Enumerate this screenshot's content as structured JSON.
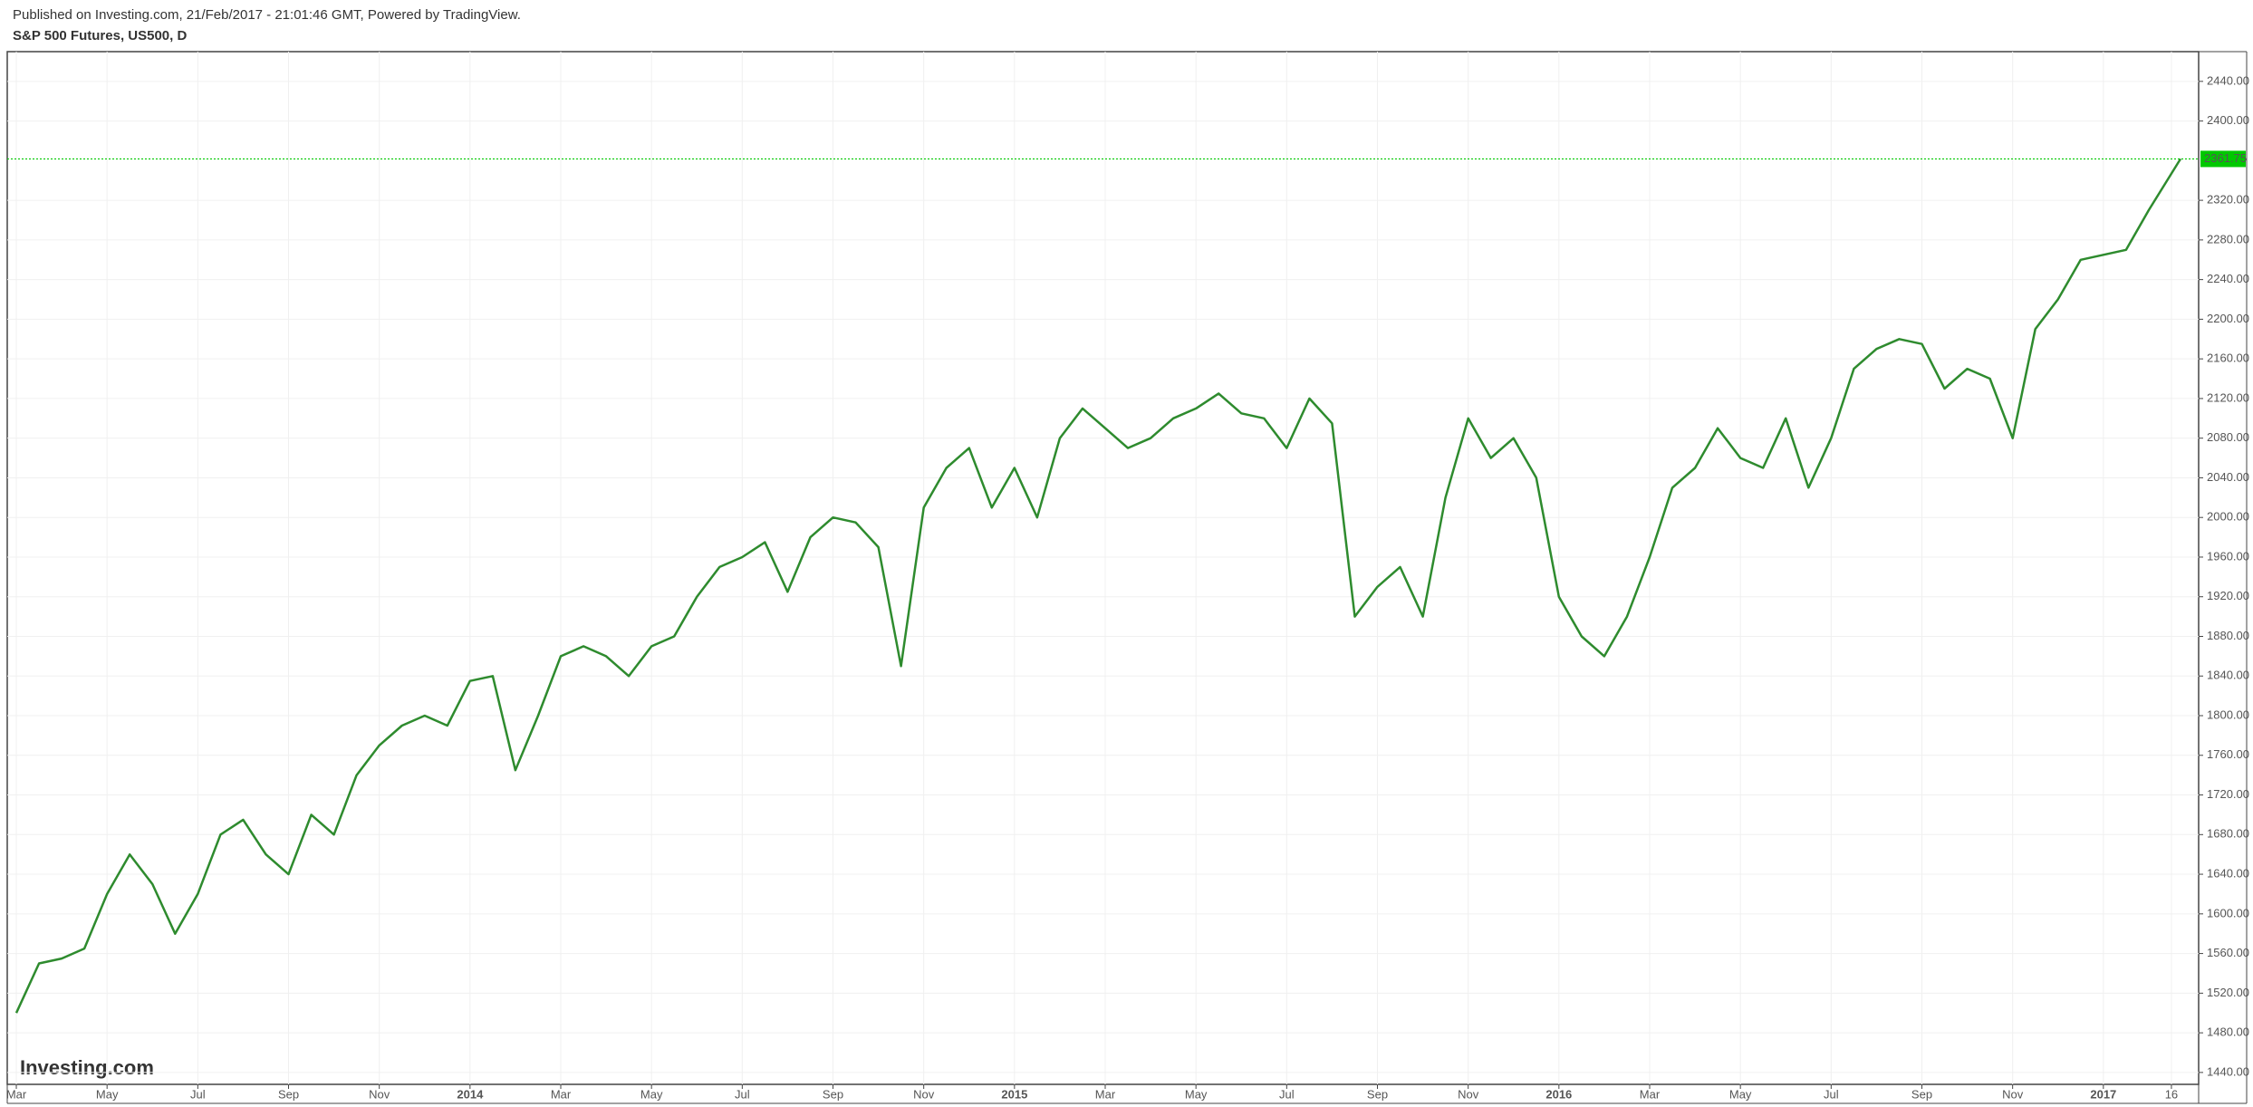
{
  "header": {
    "published": "Published on Investing.com, 21/Feb/2017 - 21:01:46 GMT, Powered by TradingView.",
    "logo": "Investing.com"
  },
  "chart_data": {
    "type": "line",
    "title": "S&P 500 Futures, US500, D",
    "color": "#2e8b2e",
    "x": [
      0,
      0.5,
      1,
      1.5,
      2,
      2.5,
      3,
      3.5,
      4,
      4.5,
      5,
      5.5,
      6,
      6.5,
      7,
      7.5,
      8,
      8.5,
      9,
      9.5,
      10,
      10.5,
      11,
      11.5,
      12,
      12.5,
      13,
      13.5,
      14,
      14.5,
      15,
      15.5,
      16,
      16.5,
      17,
      17.5,
      18,
      18.5,
      19,
      19.5,
      20,
      20.5,
      21,
      21.5,
      22,
      22.5,
      23,
      23.5,
      24,
      24.5,
      25,
      25.5,
      26,
      26.5,
      27,
      27.5,
      28,
      28.5,
      29,
      29.5,
      30,
      30.5,
      31,
      31.5,
      32,
      32.5,
      33,
      33.5,
      34,
      34.5,
      35,
      35.5,
      36,
      36.5,
      37,
      37.5,
      38,
      38.5,
      39,
      39.5,
      40,
      40.5,
      41,
      41.5,
      42,
      42.5,
      43,
      43.5,
      44,
      44.5,
      45,
      45.5,
      46,
      46.5,
      47,
      47.7
    ],
    "values": [
      1500,
      1550,
      1555,
      1565,
      1620,
      1660,
      1630,
      1580,
      1620,
      1680,
      1695,
      1660,
      1640,
      1700,
      1680,
      1740,
      1770,
      1790,
      1800,
      1790,
      1835,
      1840,
      1745,
      1800,
      1860,
      1870,
      1860,
      1840,
      1870,
      1880,
      1920,
      1950,
      1960,
      1975,
      1925,
      1980,
      2000,
      1995,
      1970,
      1850,
      2010,
      2050,
      2070,
      2010,
      2050,
      2000,
      2080,
      2110,
      2090,
      2070,
      2080,
      2100,
      2110,
      2125,
      2105,
      2100,
      2070,
      2120,
      2095,
      1900,
      1930,
      1950,
      1900,
      2020,
      2100,
      2060,
      2080,
      2040,
      1920,
      1880,
      1860,
      1900,
      1960,
      2030,
      2050,
      2090,
      2060,
      2050,
      2100,
      2030,
      2080,
      2150,
      2170,
      2180,
      2175,
      2130,
      2150,
      2140,
      2080,
      2190,
      2220,
      2260,
      2265,
      2270,
      2310,
      2361.75
    ],
    "last_price": {
      "value": 2361.75,
      "label": "2361.75",
      "color": "#00c800"
    },
    "xlim": [
      -0.2,
      48.1
    ],
    "xticks": [
      {
        "value": 0,
        "label": "Mar"
      },
      {
        "value": 2,
        "label": "May"
      },
      {
        "value": 4,
        "label": "Jul"
      },
      {
        "value": 6,
        "label": "Sep"
      },
      {
        "value": 8,
        "label": "Nov"
      },
      {
        "value": 10,
        "label": "2014"
      },
      {
        "value": 12,
        "label": "Mar"
      },
      {
        "value": 14,
        "label": "May"
      },
      {
        "value": 16,
        "label": "Jul"
      },
      {
        "value": 18,
        "label": "Sep"
      },
      {
        "value": 20,
        "label": "Nov"
      },
      {
        "value": 22,
        "label": "2015"
      },
      {
        "value": 24,
        "label": "Mar"
      },
      {
        "value": 26,
        "label": "May"
      },
      {
        "value": 28,
        "label": "Jul"
      },
      {
        "value": 30,
        "label": "Sep"
      },
      {
        "value": 32,
        "label": "Nov"
      },
      {
        "value": 34,
        "label": "2016"
      },
      {
        "value": 36,
        "label": "Mar"
      },
      {
        "value": 38,
        "label": "May"
      },
      {
        "value": 40,
        "label": "Jul"
      },
      {
        "value": 42,
        "label": "Sep"
      },
      {
        "value": 44,
        "label": "Nov"
      },
      {
        "value": 46,
        "label": "2017"
      },
      {
        "value": 47.5,
        "label": "16"
      }
    ],
    "ylim": [
      1428,
      2470
    ],
    "yticks": [
      {
        "value": 1440,
        "label": "1440.00"
      },
      {
        "value": 1480,
        "label": "1480.00"
      },
      {
        "value": 1520,
        "label": "1520.00"
      },
      {
        "value": 1560,
        "label": "1560.00"
      },
      {
        "value": 1600,
        "label": "1600.00"
      },
      {
        "value": 1640,
        "label": "1640.00"
      },
      {
        "value": 1680,
        "label": "1680.00"
      },
      {
        "value": 1720,
        "label": "1720.00"
      },
      {
        "value": 1760,
        "label": "1760.00"
      },
      {
        "value": 1800,
        "label": "1800.00"
      },
      {
        "value": 1840,
        "label": "1840.00"
      },
      {
        "value": 1880,
        "label": "1880.00"
      },
      {
        "value": 1920,
        "label": "1920.00"
      },
      {
        "value": 1960,
        "label": "1960.00"
      },
      {
        "value": 2000,
        "label": "2000.00"
      },
      {
        "value": 2040,
        "label": "2040.00"
      },
      {
        "value": 2080,
        "label": "2080.00"
      },
      {
        "value": 2120,
        "label": "2120.00"
      },
      {
        "value": 2160,
        "label": "2160.00"
      },
      {
        "value": 2200,
        "label": "2200.00"
      },
      {
        "value": 2240,
        "label": "2240.00"
      },
      {
        "value": 2280,
        "label": "2280.00"
      },
      {
        "value": 2320,
        "label": "2320.00"
      },
      {
        "value": 2400,
        "label": "2400.00"
      },
      {
        "value": 2440,
        "label": "2440.00"
      }
    ],
    "grid": true
  }
}
